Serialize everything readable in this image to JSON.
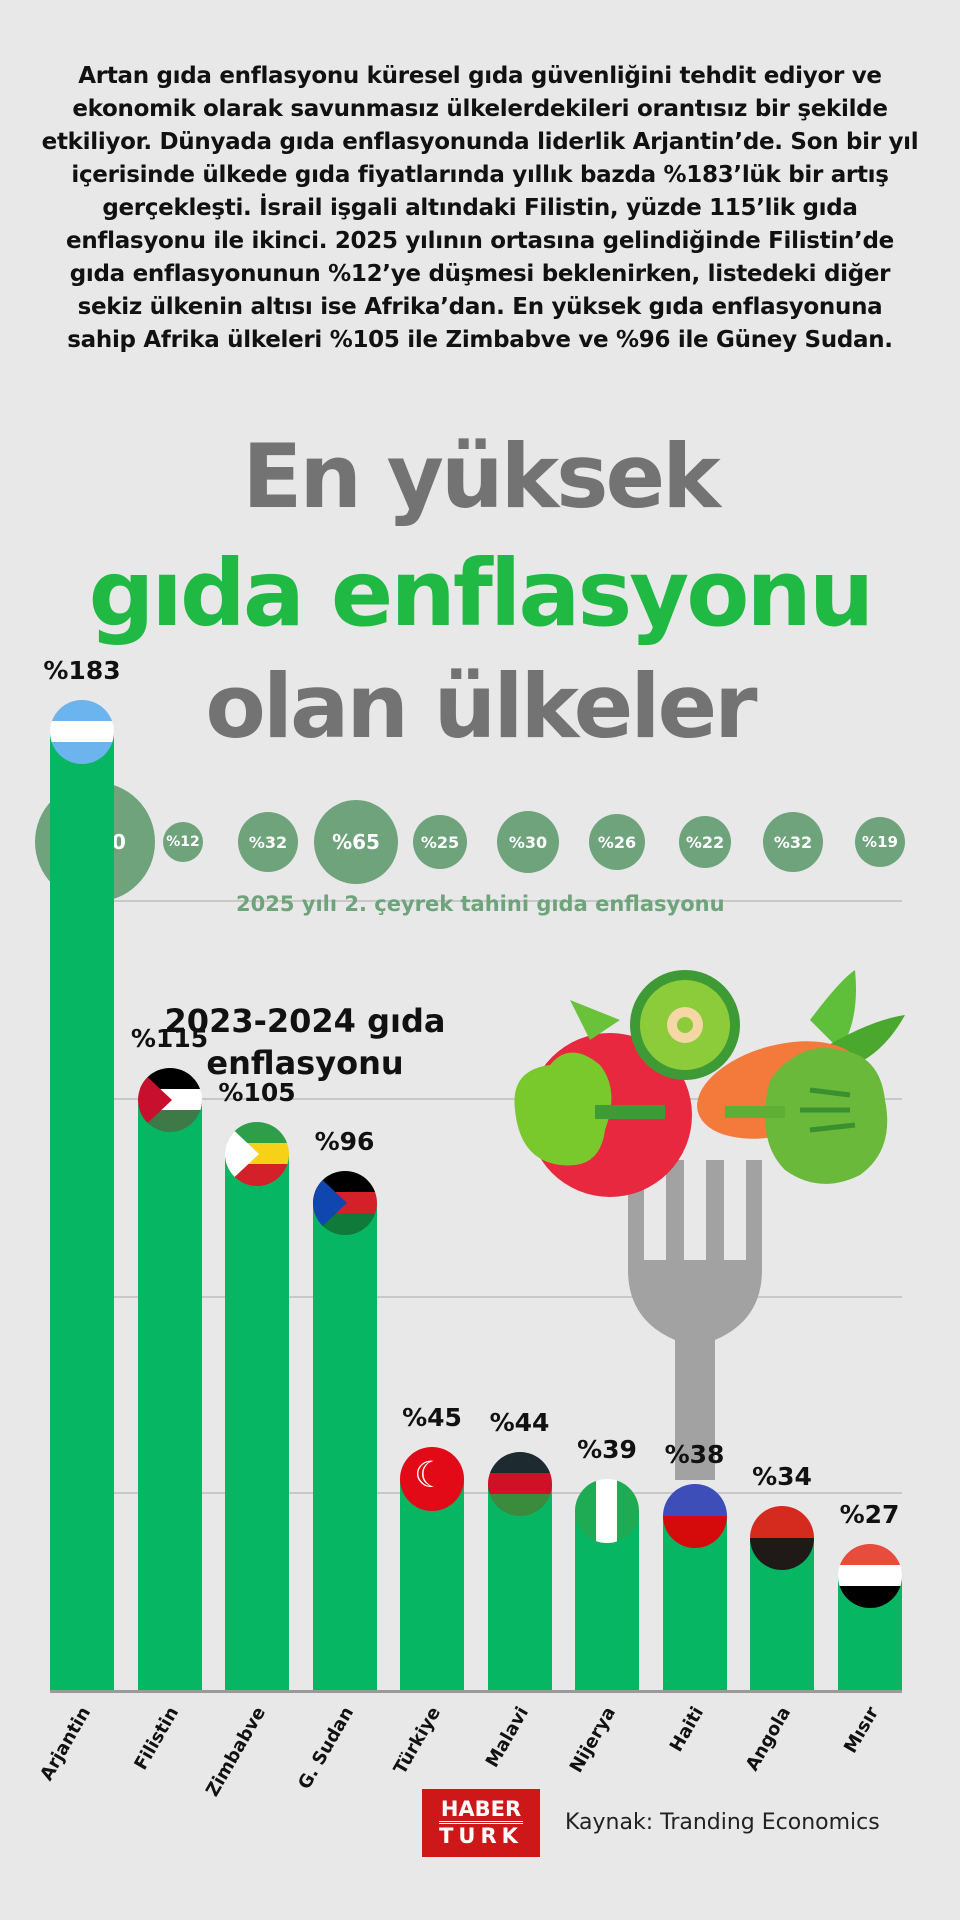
{
  "intro_text": "Artan gıda enflasyonu küresel gıda güvenliğini tehdit ediyor ve ekonomik olarak savunmasız ülkelerdekileri orantısız bir şekilde etkiliyor. Dünyada gıda enflasyonunda liderlik Arjantin’de. Son bir yıl içerisinde ülkede gıda fiyatlarında yıllık bazda %183’lük bir artış gerçekleşti. İsrail işgali altındaki Filistin, yüzde 115’lik gıda enflasyonu ile ikinci. 2025 yılının ortasına gelindiğinde Filistin’de gıda enflasyonunun %12’ye düşmesi beklenirken, listedeki diğer sekiz ülkenin altısı ise Afrika’dan. En yüksek gıda enflasyonuna sahip Afrika ülkeleri %105 ile Zimbabve ve %96 ile Güney Sudan.",
  "title": {
    "line1": "En yüksek",
    "line2": "gıda enflasyonu",
    "line3": "olan ülkeler"
  },
  "colors": {
    "bar": "#07b663",
    "bubble": "#6ea37b",
    "title_gray": "#737373",
    "title_green": "#1fb944",
    "logo_red": "#cd1719"
  },
  "bubble_caption": "2025 yılı 2. çeyrek tahini gıda enflasyonu",
  "legend_label": "2023-2024 gıda enflasyonu",
  "logo": {
    "line1": "HABER",
    "line2": "TURK"
  },
  "source": "Kaynak: Tranding Economics",
  "chart_data": [
    {
      "type": "bar",
      "title": "2023-2024 gıda enflasyonu",
      "categories": [
        "Arjantin",
        "Filistin",
        "Zimbabve",
        "G. Sudan",
        "Türkiye",
        "Malavi",
        "Nijerya",
        "Haiti",
        "Angola",
        "Mısır"
      ],
      "values": [
        183,
        115,
        105,
        96,
        45,
        44,
        39,
        38,
        34,
        27
      ],
      "value_labels": [
        "%183",
        "%115",
        "%105",
        "%96",
        "%45",
        "%44",
        "%39",
        "%38",
        "%34",
        "%27"
      ],
      "xlabel": "",
      "ylabel": "",
      "ylim": [
        0,
        200
      ],
      "grid": true
    },
    {
      "type": "scatter",
      "title": "2025 yılı 2. çeyrek tahini gıda enflasyonu",
      "categories": [
        "Arjantin",
        "Filistin",
        "Zimbabve",
        "G. Sudan",
        "Türkiye",
        "Malavi",
        "Nijerya",
        "Haiti",
        "Angola",
        "Mısır"
      ],
      "values": [
        120,
        12,
        32,
        65,
        25,
        30,
        26,
        22,
        32,
        19
      ],
      "value_labels": [
        "%120",
        "%12",
        "%32",
        "%65",
        "%25",
        "%30",
        "%26",
        "%22",
        "%32",
        "%19"
      ]
    }
  ]
}
